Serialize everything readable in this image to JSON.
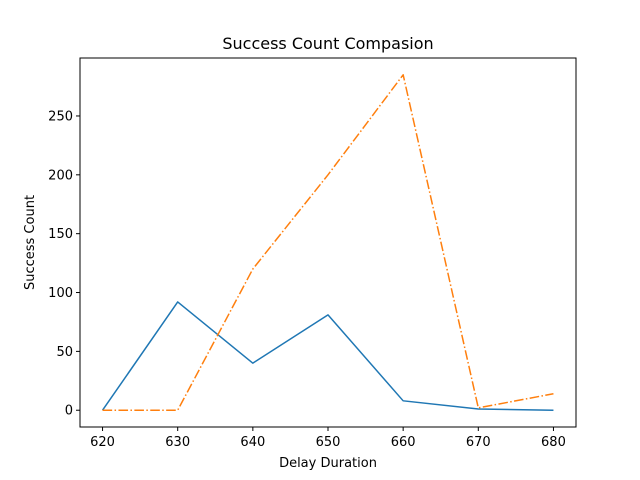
{
  "chart_data": {
    "type": "line",
    "title": "Success Count Compasion",
    "xlabel": "Delay Duration",
    "ylabel": "Success Count",
    "x": [
      620,
      630,
      640,
      650,
      660,
      670,
      680
    ],
    "xticks": [
      620,
      630,
      640,
      650,
      660,
      670,
      680
    ],
    "yticks": [
      0,
      50,
      100,
      150,
      200,
      250
    ],
    "xlim": [
      617,
      683
    ],
    "ylim": [
      -14.25,
      299.25
    ],
    "grid": false,
    "series": [
      {
        "name": "series-1",
        "color": "#1f77b4",
        "linestyle": "solid",
        "values": [
          0,
          92,
          40,
          81,
          8,
          1,
          0
        ]
      },
      {
        "name": "series-2",
        "color": "#ff7f0e",
        "linestyle": "dashdot",
        "values": [
          0,
          0,
          120,
          200,
          285,
          2,
          14
        ]
      }
    ]
  }
}
